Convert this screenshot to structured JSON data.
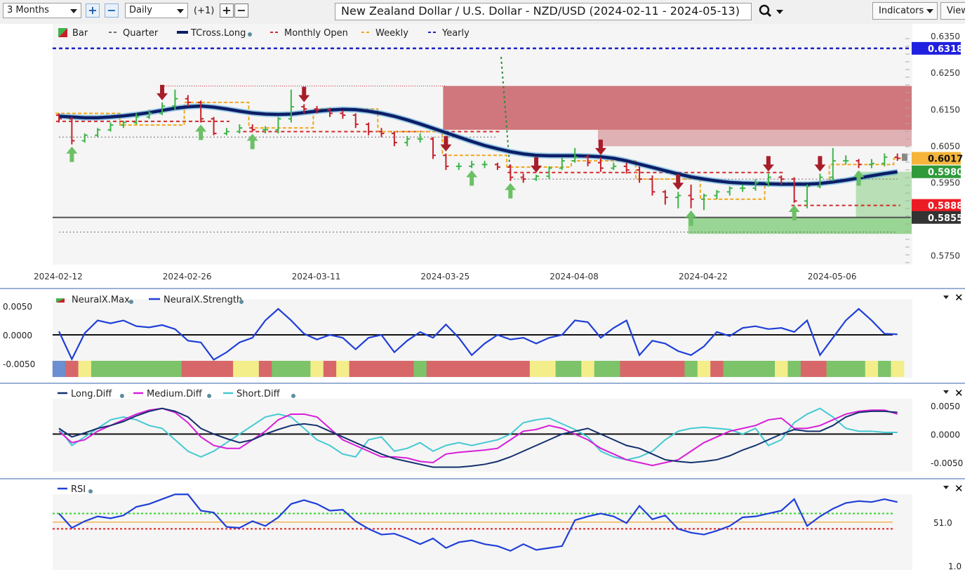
{
  "toolbar": {
    "period": "3 Months",
    "interval": "Daily",
    "offset": "(+1)",
    "zoom_in": "+",
    "zoom_out": "−",
    "step_plus": "+",
    "step_minus": "−",
    "title": "New Zealand Dollar / U.S. Dollar - NZD/USD (2024-02-11 - 2024-05-13)",
    "search_icon": "magnifier-icon",
    "indicators_label": "Indicators",
    "view_label": "View"
  },
  "colors": {
    "bull": "#3cb54a",
    "bear": "#c8202c",
    "tcross": "#0b1e66",
    "quarter": "#6b6b6b",
    "monthly": "#d42a2a",
    "weekly": "#f2a71b",
    "yearly": "#1c22c4",
    "bull_zone": "#8fd18a",
    "bear_zone": "#c86066"
  },
  "chart_data": [
    {
      "type": "candlestick",
      "legend": [
        "Bar",
        "Quarter",
        "TCross.Long",
        "Monthly Open",
        "Weekly",
        "Yearly"
      ],
      "x_ticks": [
        "2024-02-12",
        "2024-02-26",
        "2024-03-11",
        "2024-03-25",
        "2024-04-08",
        "2024-04-22",
        "2024-05-06"
      ],
      "y_ticks": [
        "0.6350",
        "0.6250",
        "0.6150",
        "0.6050",
        "0.5950",
        "0.5750"
      ],
      "ylim": [
        0.572,
        0.6385
      ],
      "dates": [
        "2024-02-12",
        "2024-02-13",
        "2024-02-14",
        "2024-02-15",
        "2024-02-16",
        "2024-02-19",
        "2024-02-20",
        "2024-02-21",
        "2024-02-22",
        "2024-02-23",
        "2024-02-26",
        "2024-02-27",
        "2024-02-28",
        "2024-02-29",
        "2024-03-01",
        "2024-03-04",
        "2024-03-05",
        "2024-03-06",
        "2024-03-07",
        "2024-03-08",
        "2024-03-11",
        "2024-03-12",
        "2024-03-13",
        "2024-03-14",
        "2024-03-15",
        "2024-03-18",
        "2024-03-19",
        "2024-03-20",
        "2024-03-21",
        "2024-03-22",
        "2024-03-25",
        "2024-03-26",
        "2024-03-27",
        "2024-03-28",
        "2024-03-29",
        "2024-04-01",
        "2024-04-02",
        "2024-04-03",
        "2024-04-04",
        "2024-04-05",
        "2024-04-08",
        "2024-04-09",
        "2024-04-10",
        "2024-04-11",
        "2024-04-12",
        "2024-04-15",
        "2024-04-16",
        "2024-04-17",
        "2024-04-18",
        "2024-04-19",
        "2024-04-22",
        "2024-04-23",
        "2024-04-24",
        "2024-04-25",
        "2024-04-26",
        "2024-04-29",
        "2024-04-30",
        "2024-05-01",
        "2024-05-02",
        "2024-05-03",
        "2024-05-06",
        "2024-05-07",
        "2024-05-08",
        "2024-05-09",
        "2024-05-10",
        "2024-05-13"
      ],
      "open": [
        0.6135,
        0.6125,
        0.6065,
        0.608,
        0.6095,
        0.6108,
        0.6115,
        0.613,
        0.614,
        0.616,
        0.618,
        0.617,
        0.6125,
        0.6085,
        0.609,
        0.61,
        0.6095,
        0.6095,
        0.6125,
        0.6158,
        0.6152,
        0.615,
        0.614,
        0.6135,
        0.611,
        0.609,
        0.6085,
        0.606,
        0.607,
        0.607,
        0.6025,
        0.5995,
        0.5995,
        0.6,
        0.6,
        0.5993,
        0.5965,
        0.596,
        0.5968,
        0.599,
        0.601,
        0.602,
        0.6005,
        0.599,
        0.5995,
        0.5985,
        0.596,
        0.5925,
        0.591,
        0.5915,
        0.5905,
        0.5915,
        0.5925,
        0.5935,
        0.5935,
        0.595,
        0.5965,
        0.596,
        0.59,
        0.594,
        0.5965,
        0.601,
        0.601,
        0.6,
        0.6003,
        0.602
      ],
      "close": [
        0.6125,
        0.6065,
        0.608,
        0.6095,
        0.6108,
        0.6115,
        0.613,
        0.614,
        0.616,
        0.618,
        0.617,
        0.6125,
        0.6085,
        0.609,
        0.61,
        0.6095,
        0.6095,
        0.6125,
        0.6158,
        0.6152,
        0.615,
        0.614,
        0.6135,
        0.611,
        0.609,
        0.6085,
        0.606,
        0.607,
        0.607,
        0.6025,
        0.5995,
        0.5995,
        0.6,
        0.6,
        0.5993,
        0.5965,
        0.596,
        0.5968,
        0.599,
        0.601,
        0.602,
        0.6005,
        0.599,
        0.5995,
        0.5985,
        0.596,
        0.5925,
        0.591,
        0.5915,
        0.5905,
        0.5915,
        0.5925,
        0.5935,
        0.5935,
        0.595,
        0.5965,
        0.596,
        0.59,
        0.594,
        0.5965,
        0.601,
        0.601,
        0.6,
        0.6003,
        0.602,
        0.6017
      ],
      "high": [
        0.614,
        0.613,
        0.6085,
        0.61,
        0.6115,
        0.612,
        0.614,
        0.615,
        0.617,
        0.6205,
        0.619,
        0.6175,
        0.613,
        0.61,
        0.611,
        0.611,
        0.6105,
        0.613,
        0.6205,
        0.6165,
        0.616,
        0.6155,
        0.6148,
        0.614,
        0.6115,
        0.61,
        0.609,
        0.6078,
        0.6085,
        0.6075,
        0.603,
        0.6005,
        0.601,
        0.601,
        0.6005,
        0.6,
        0.5975,
        0.5972,
        0.5995,
        0.602,
        0.6045,
        0.6028,
        0.602,
        0.6005,
        0.6005,
        0.5995,
        0.597,
        0.593,
        0.5925,
        0.5945,
        0.592,
        0.593,
        0.594,
        0.5945,
        0.596,
        0.5975,
        0.597,
        0.5965,
        0.5945,
        0.5975,
        0.6045,
        0.6025,
        0.6015,
        0.6015,
        0.603,
        0.603
      ],
      "low": [
        0.6115,
        0.6055,
        0.606,
        0.6075,
        0.609,
        0.61,
        0.611,
        0.6125,
        0.6135,
        0.615,
        0.616,
        0.6115,
        0.608,
        0.608,
        0.6085,
        0.609,
        0.6085,
        0.6085,
        0.6115,
        0.614,
        0.614,
        0.613,
        0.6125,
        0.61,
        0.608,
        0.6075,
        0.605,
        0.605,
        0.606,
        0.6015,
        0.5985,
        0.5985,
        0.599,
        0.599,
        0.5985,
        0.5955,
        0.595,
        0.5955,
        0.596,
        0.5985,
        0.6005,
        0.5995,
        0.598,
        0.5985,
        0.5975,
        0.595,
        0.5915,
        0.589,
        0.588,
        0.588,
        0.5875,
        0.5905,
        0.5915,
        0.5925,
        0.5928,
        0.594,
        0.5945,
        0.5895,
        0.588,
        0.5935,
        0.5955,
        0.6,
        0.599,
        0.599,
        0.5995,
        0.601
      ],
      "tcross": [
        0.6132,
        0.613,
        0.6128,
        0.6128,
        0.613,
        0.6133,
        0.6137,
        0.6142,
        0.6148,
        0.6154,
        0.6158,
        0.616,
        0.6157,
        0.6152,
        0.6146,
        0.6141,
        0.6138,
        0.6137,
        0.6138,
        0.6142,
        0.6146,
        0.6149,
        0.6151,
        0.615,
        0.6146,
        0.614,
        0.6132,
        0.6122,
        0.6111,
        0.6099,
        0.6087,
        0.6075,
        0.6063,
        0.6052,
        0.6043,
        0.6035,
        0.6029,
        0.6025,
        0.6024,
        0.6024,
        0.6024,
        0.6023,
        0.6021,
        0.6017,
        0.601,
        0.6001,
        0.5992,
        0.5983,
        0.5974,
        0.5966,
        0.596,
        0.5955,
        0.5951,
        0.5949,
        0.5948,
        0.5947,
        0.5946,
        0.5946,
        0.5946,
        0.5948,
        0.5952,
        0.5957,
        0.5963,
        0.5969,
        0.5975,
        0.598
      ],
      "yearly_level": 0.6318,
      "monthly_open": [
        {
          "from": "2024-02-12",
          "to": "2024-02-29",
          "value": 0.6118
        },
        {
          "from": "2024-03-01",
          "to": "2024-03-29",
          "value": 0.609
        },
        {
          "from": "2024-04-01",
          "to": "2024-04-30",
          "value": 0.5978
        },
        {
          "from": "2024-05-01",
          "to": "2024-05-13",
          "value": 0.5888
        }
      ],
      "weekly": [
        0.614,
        0.614,
        0.614,
        0.614,
        0.614,
        0.6108,
        0.6108,
        0.6108,
        0.6108,
        0.6108,
        0.617,
        0.617,
        0.617,
        0.617,
        0.617,
        0.61,
        0.61,
        0.61,
        0.61,
        0.61,
        0.6152,
        0.6152,
        0.6152,
        0.6152,
        0.6152,
        0.609,
        0.609,
        0.609,
        0.609,
        0.609,
        0.6025,
        0.6025,
        0.6025,
        0.6025,
        0.6025,
        0.5993,
        0.5993,
        0.5993,
        0.5993,
        0.5993,
        0.601,
        0.601,
        0.601,
        0.601,
        0.601,
        0.596,
        0.596,
        0.596,
        0.596,
        0.596,
        0.5905,
        0.5905,
        0.5905,
        0.5905,
        0.5905,
        0.595,
        0.595,
        0.595,
        0.595,
        0.595,
        0.6,
        0.6,
        0.6,
        0.6,
        0.6,
        0.6017
      ],
      "quarter_levels": [
        {
          "value": 0.6075,
          "from": "2024-02-12",
          "to": "2024-03-29"
        },
        {
          "value": 0.596,
          "from": "2024-04-01",
          "to": "2024-05-13"
        },
        {
          "value": 0.5815,
          "from": "2024-02-12",
          "to": "2024-05-13"
        }
      ],
      "quarter_open_date": "2024-04-01",
      "support_level": 0.5855,
      "bear_zones": [
        {
          "from": "2024-03-25",
          "to": "2024-05-13",
          "top": 0.6215,
          "bottom": 0.6095
        },
        {
          "from": "2024-04-10",
          "to": "2024-05-13",
          "top": 0.6095,
          "bottom": 0.605
        }
      ],
      "bull_zones": [
        {
          "from": "2024-04-19",
          "to": "2024-05-13",
          "top": 0.5855,
          "bottom": 0.581
        },
        {
          "from": "2024-05-08",
          "to": "2024-05-13",
          "top": 0.598,
          "bottom": 0.5855
        }
      ],
      "ceiling_line": {
        "value": 0.6215,
        "from": "2024-02-22",
        "to": "2024-03-25"
      },
      "sell_signals": [
        "2024-02-22",
        "2024-03-08",
        "2024-03-25",
        "2024-04-03",
        "2024-04-10",
        "2024-04-18",
        "2024-04-29",
        "2024-05-03"
      ],
      "buy_signals": [
        "2024-02-13",
        "2024-02-27",
        "2024-03-04",
        "2024-03-27",
        "2024-04-01",
        "2024-04-19",
        "2024-05-01",
        "2024-05-08"
      ],
      "price_labels": [
        {
          "value": 0.6318,
          "text": "0.6318",
          "color": "#2020e0"
        },
        {
          "value": 0.6017,
          "text": "0.6017",
          "color": "#f5b53a"
        },
        {
          "value": 0.598,
          "text": "0.5980",
          "color": "#2e9a3a"
        },
        {
          "value": 0.5888,
          "text": "0.5888",
          "color": "#ec1c24"
        },
        {
          "value": 0.5855,
          "text": "0.5855",
          "color": "#333333"
        }
      ]
    },
    {
      "type": "line",
      "legend": [
        "NeuralX.Max",
        "NeuralX.Strength"
      ],
      "y_ticks": [
        "0.0050",
        "0.0000",
        "-0.0050"
      ],
      "ylim": [
        -0.0074,
        0.0062
      ],
      "strength": [
        0.0006,
        -0.0042,
        0.0003,
        0.0025,
        0.002,
        0.0025,
        0.0015,
        0.0013,
        0.0017,
        0.001,
        -0.001,
        -0.0013,
        -0.0043,
        -0.003,
        -0.0013,
        -0.0005,
        0.0025,
        0.0045,
        0.0025,
        0.0002,
        -0.0008,
        0.0,
        -0.0005,
        -0.0025,
        -0.0005,
        0.0,
        -0.003,
        -0.001,
        0.0005,
        -0.0005,
        0.0018,
        -0.0005,
        -0.0035,
        -0.0015,
        0.0,
        -0.0008,
        -0.0005,
        -0.0015,
        -0.0005,
        0.0,
        0.0025,
        0.0022,
        -0.0005,
        0.0012,
        0.0025,
        -0.0035,
        -0.001,
        -0.0015,
        -0.0028,
        -0.0035,
        -0.002,
        0.0005,
        -0.0002,
        0.0012,
        0.0015,
        0.001,
        0.0012,
        0.0005,
        0.0025,
        -0.0035,
        -0.0005,
        0.0025,
        0.0045,
        0.0025,
        0.0002,
        0.0001
      ],
      "max_state": [
        "b",
        "r",
        "y",
        "g",
        "g",
        "g",
        "g",
        "g",
        "g",
        "g",
        "r",
        "r",
        "r",
        "r",
        "y",
        "y",
        "r",
        "g",
        "g",
        "g",
        "y",
        "r",
        "y",
        "r",
        "r",
        "r",
        "r",
        "r",
        "g",
        "r",
        "r",
        "r",
        "r",
        "r",
        "r",
        "r",
        "r",
        "y",
        "y",
        "g",
        "g",
        "y",
        "g",
        "g",
        "r",
        "r",
        "r",
        "r",
        "r",
        "g",
        "y",
        "r",
        "g",
        "g",
        "g",
        "g",
        "y",
        "g",
        "r",
        "r",
        "g",
        "g",
        "g",
        "y",
        "g",
        "y"
      ]
    },
    {
      "type": "line",
      "legend": [
        "Long.Diff",
        "Medium.Diff",
        "Short.Diff"
      ],
      "y_ticks": [
        "0.0050",
        "0.0000",
        "-0.0050"
      ],
      "ylim": [
        -0.0066,
        0.0062
      ],
      "long": [
        0.001,
        -0.0005,
        0.0002,
        0.001,
        0.0015,
        0.0022,
        0.0032,
        0.004,
        0.0045,
        0.004,
        0.003,
        0.001,
        0.0,
        -0.0008,
        -0.0015,
        -0.001,
        0.0,
        0.0008,
        0.0015,
        0.0018,
        0.0015,
        0.0005,
        -0.0005,
        -0.0015,
        -0.0025,
        -0.0035,
        -0.0043,
        -0.0048,
        -0.0053,
        -0.0058,
        -0.0058,
        -0.0058,
        -0.0056,
        -0.0053,
        -0.0048,
        -0.004,
        -0.003,
        -0.002,
        -0.001,
        0.0,
        0.0005,
        0.001,
        0.0,
        -0.001,
        -0.002,
        -0.0025,
        -0.0035,
        -0.0045,
        -0.0048,
        -0.005,
        -0.0048,
        -0.0045,
        -0.0038,
        -0.0028,
        -0.002,
        -0.001,
        0.0,
        0.0008,
        0.0005,
        0.0005,
        0.0015,
        0.003,
        0.0038,
        0.004,
        0.004,
        0.0038
      ],
      "medium": [
        0.0005,
        -0.0015,
        -0.001,
        0.0005,
        0.0015,
        0.0025,
        0.0035,
        0.0042,
        0.0045,
        0.0038,
        0.002,
        -0.0005,
        -0.002,
        -0.0025,
        -0.0025,
        -0.001,
        0.0005,
        0.0025,
        0.0035,
        0.0035,
        0.003,
        0.001,
        -0.001,
        -0.002,
        -0.003,
        -0.004,
        -0.004,
        -0.0042,
        -0.0048,
        -0.005,
        -0.0035,
        -0.0032,
        -0.003,
        -0.0028,
        -0.0025,
        -0.001,
        0.0005,
        0.0008,
        0.0015,
        0.001,
        0.0,
        -0.001,
        -0.0025,
        -0.0035,
        -0.0045,
        -0.005,
        -0.0055,
        -0.005,
        -0.0045,
        -0.003,
        -0.0015,
        -0.0005,
        0.0005,
        0.001,
        0.0015,
        0.0025,
        0.0028,
        0.001,
        0.001,
        0.0015,
        0.0025,
        0.0035,
        0.004,
        0.0042,
        0.0042,
        0.0035
      ],
      "short": [
        0.001,
        -0.002,
        -0.0005,
        0.001,
        0.0025,
        0.003,
        0.0025,
        0.0015,
        0.001,
        -0.001,
        -0.003,
        -0.004,
        -0.003,
        -0.0015,
        0.0,
        0.0015,
        0.003,
        0.0035,
        0.003,
        0.001,
        -0.001,
        -0.002,
        -0.0035,
        -0.004,
        -0.001,
        -0.0005,
        -0.003,
        -0.0025,
        -0.0015,
        -0.003,
        -0.002,
        -0.0015,
        -0.002,
        -0.0015,
        -0.001,
        0.0,
        0.002,
        0.0025,
        0.0028,
        0.0018,
        0.0008,
        -0.0005,
        -0.003,
        -0.004,
        -0.0045,
        -0.004,
        -0.003,
        -0.001,
        0.0005,
        0.001,
        0.0012,
        0.001,
        0.0008,
        0.0,
        0.001,
        -0.002,
        -0.001,
        0.002,
        0.0035,
        0.0045,
        0.003,
        0.001,
        0.0005,
        0.0005,
        0.0003,
        0.0003
      ]
    },
    {
      "type": "line",
      "legend": [
        "RSI"
      ],
      "y_ticks": [
        "51.0",
        "1.0"
      ],
      "ylim": [
        1,
        100
      ],
      "levels": {
        "upper": 60,
        "middle": 51,
        "lower": 44
      },
      "rsi": [
        60,
        45,
        52,
        57,
        55,
        58,
        67,
        70,
        75,
        80,
        80,
        63,
        61,
        46,
        45,
        52,
        47,
        56,
        70,
        74,
        70,
        63,
        64,
        52,
        44,
        38,
        39,
        34,
        28,
        34,
        24,
        30,
        32,
        28,
        26,
        21,
        28,
        22,
        24,
        26,
        53,
        57,
        60,
        57,
        50,
        68,
        54,
        58,
        44,
        40,
        38,
        42,
        47,
        56,
        57,
        60,
        63,
        75,
        47,
        57,
        65,
        71,
        73,
        72,
        75,
        72
      ]
    }
  ]
}
